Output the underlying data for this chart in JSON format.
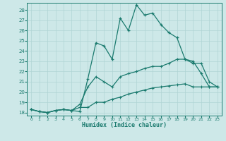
{
  "xlabel": "Humidex (Indice chaleur)",
  "xlim_min": -0.5,
  "xlim_max": 23.5,
  "ylim_min": 17.7,
  "ylim_max": 28.7,
  "yticks": [
    18,
    19,
    20,
    21,
    22,
    23,
    24,
    25,
    26,
    27,
    28
  ],
  "xticks": [
    0,
    1,
    2,
    3,
    4,
    5,
    6,
    7,
    8,
    9,
    10,
    11,
    12,
    13,
    14,
    15,
    16,
    17,
    18,
    19,
    20,
    21,
    22,
    23
  ],
  "bg_color": "#cde8e8",
  "grid_color": "#b0d4d4",
  "line_color": "#1a7a6e",
  "series_max": [
    [
      0,
      18.3
    ],
    [
      1,
      18.1
    ],
    [
      2,
      18.0
    ],
    [
      3,
      18.2
    ],
    [
      4,
      18.3
    ],
    [
      5,
      18.2
    ],
    [
      6,
      18.1
    ],
    [
      7,
      21.3
    ],
    [
      8,
      24.8
    ],
    [
      9,
      24.5
    ],
    [
      10,
      23.2
    ],
    [
      11,
      27.2
    ],
    [
      12,
      26.0
    ],
    [
      13,
      28.5
    ],
    [
      14,
      27.5
    ],
    [
      15,
      27.7
    ],
    [
      16,
      26.6
    ],
    [
      17,
      25.8
    ],
    [
      18,
      25.3
    ],
    [
      19,
      23.2
    ],
    [
      20,
      23.0
    ],
    [
      21,
      21.8
    ],
    [
      22,
      20.5
    ],
    [
      23,
      20.5
    ]
  ],
  "series_mean": [
    [
      0,
      18.3
    ],
    [
      1,
      18.1
    ],
    [
      2,
      18.0
    ],
    [
      3,
      18.2
    ],
    [
      4,
      18.3
    ],
    [
      5,
      18.2
    ],
    [
      6,
      18.8
    ],
    [
      7,
      20.5
    ],
    [
      8,
      21.5
    ],
    [
      9,
      21.0
    ],
    [
      10,
      20.5
    ],
    [
      11,
      21.5
    ],
    [
      12,
      21.8
    ],
    [
      13,
      22.0
    ],
    [
      14,
      22.3
    ],
    [
      15,
      22.5
    ],
    [
      16,
      22.5
    ],
    [
      17,
      22.8
    ],
    [
      18,
      23.2
    ],
    [
      19,
      23.2
    ],
    [
      20,
      22.8
    ],
    [
      21,
      22.8
    ],
    [
      22,
      21.0
    ],
    [
      23,
      20.5
    ]
  ],
  "series_min": [
    [
      0,
      18.3
    ],
    [
      1,
      18.1
    ],
    [
      2,
      18.0
    ],
    [
      3,
      18.2
    ],
    [
      4,
      18.3
    ],
    [
      5,
      18.2
    ],
    [
      6,
      18.5
    ],
    [
      7,
      18.5
    ],
    [
      8,
      19.0
    ],
    [
      9,
      19.0
    ],
    [
      10,
      19.3
    ],
    [
      11,
      19.5
    ],
    [
      12,
      19.8
    ],
    [
      13,
      20.0
    ],
    [
      14,
      20.2
    ],
    [
      15,
      20.4
    ],
    [
      16,
      20.5
    ],
    [
      17,
      20.6
    ],
    [
      18,
      20.7
    ],
    [
      19,
      20.8
    ],
    [
      20,
      20.5
    ],
    [
      21,
      20.5
    ],
    [
      22,
      20.5
    ],
    [
      23,
      20.5
    ]
  ]
}
